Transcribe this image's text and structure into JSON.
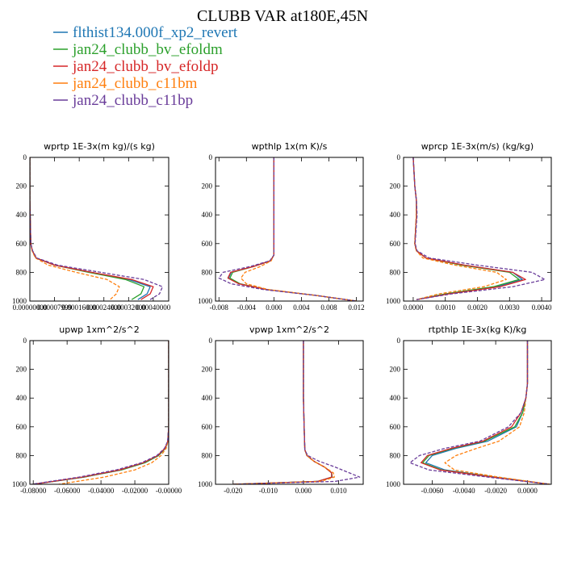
{
  "figure": {
    "title": "CLUBB VAR at180E,45N"
  },
  "legend": [
    {
      "name": "flthist134.000f_xp2_revert",
      "color": "#1f77b4"
    },
    {
      "name": "jan24_clubb_bv_efoldm",
      "color": "#2ca02c"
    },
    {
      "name": "jan24_clubb_bv_efoldp",
      "color": "#d62728"
    },
    {
      "name": "jan24_clubb_c11bm",
      "color": "#ff7f0e"
    },
    {
      "name": "jan24_clubb_c11bp",
      "color": "#6a3d9a"
    }
  ],
  "chart_data": [
    {
      "type": "line",
      "title": "wprtp  1E-3x(m kg)/(s kg)",
      "xlim": [
        0.0,
        0.00045
      ],
      "ylim": [
        1000,
        0
      ],
      "yticks": [
        "0",
        "200",
        "400",
        "600",
        "800",
        "1000"
      ],
      "xticks": [
        "0.00000000",
        "0.00007999",
        "0.00016000",
        "0.00024000",
        "0.00032000",
        "0.00040000"
      ],
      "series": [
        {
          "y": [
            0,
            100,
            300,
            600,
            650,
            700,
            750,
            800,
            850,
            900,
            950,
            990
          ],
          "x": [
            0,
            0,
            0,
            3e-06,
            8e-06,
            2e-05,
            8e-05,
            0.0002,
            0.00032,
            0.00039,
            0.00038,
            0.00035
          ]
        },
        {
          "y": [
            0,
            100,
            300,
            600,
            650,
            700,
            750,
            800,
            850,
            900,
            950,
            990
          ],
          "x": [
            0,
            0,
            0,
            3e-06,
            8e-06,
            2e-05,
            8e-05,
            0.00019,
            0.00031,
            0.00037,
            0.00036,
            0.00033
          ]
        },
        {
          "y": [
            0,
            100,
            300,
            600,
            650,
            700,
            750,
            800,
            850,
            900,
            950,
            990
          ],
          "x": [
            0,
            0,
            0,
            3e-06,
            8e-06,
            2e-05,
            8e-05,
            0.0002,
            0.00033,
            0.0004,
            0.00039,
            0.00036
          ]
        },
        {
          "y": [
            0,
            100,
            300,
            600,
            650,
            700,
            750,
            800,
            850,
            900,
            950,
            990
          ],
          "x": [
            0,
            0,
            0,
            3e-06,
            7e-06,
            1.8e-05,
            6e-05,
            0.00015,
            0.00025,
            0.00029,
            0.00028,
            0.00026
          ]
        },
        {
          "y": [
            0,
            100,
            300,
            600,
            650,
            700,
            750,
            800,
            850,
            900,
            950,
            990
          ],
          "x": [
            0,
            0,
            0,
            3e-06,
            9e-06,
            2.2e-05,
            9e-05,
            0.00023,
            0.00037,
            0.00043,
            0.00042,
            0.00039
          ]
        }
      ]
    },
    {
      "type": "line",
      "title": "wpthlp  1x(m K)/s",
      "xlim": [
        -0.0085,
        0.013
      ],
      "ylim": [
        1000,
        0
      ],
      "yticks": [
        "0",
        "200",
        "400",
        "600",
        "800",
        "1000"
      ],
      "xticks": [
        "-0.008",
        "-0.004",
        "0.000",
        "0.004",
        "0.008",
        "0.012"
      ],
      "series": [
        {
          "y": [
            0,
            200,
            400,
            600,
            680,
            720,
            760,
            800,
            840,
            880,
            920,
            960,
            1000
          ],
          "x": [
            0,
            0,
            0,
            0,
            0,
            -0.0005,
            -0.003,
            -0.0062,
            -0.0066,
            -0.005,
            -0.001,
            0.006,
            0.012
          ]
        },
        {
          "y": [
            0,
            200,
            400,
            600,
            680,
            720,
            760,
            800,
            840,
            880,
            920,
            960,
            1000
          ],
          "x": [
            0,
            0,
            0,
            0,
            0,
            -0.0005,
            -0.003,
            -0.006,
            -0.0064,
            -0.0049,
            -0.001,
            0.006,
            0.012
          ]
        },
        {
          "y": [
            0,
            200,
            400,
            600,
            680,
            720,
            760,
            800,
            840,
            880,
            920,
            960,
            1000
          ],
          "x": [
            0,
            0,
            0,
            0,
            0,
            -0.0005,
            -0.003,
            -0.0063,
            -0.0067,
            -0.0051,
            -0.001,
            0.006,
            0.012
          ]
        },
        {
          "y": [
            0,
            200,
            400,
            600,
            680,
            720,
            760,
            800,
            840,
            880,
            920,
            960,
            1000
          ],
          "x": [
            0,
            0,
            0,
            0,
            0,
            -0.0004,
            -0.002,
            -0.0042,
            -0.0048,
            -0.004,
            -0.0008,
            0.006,
            0.012
          ]
        },
        {
          "y": [
            0,
            200,
            400,
            600,
            680,
            720,
            760,
            800,
            840,
            880,
            920,
            960,
            1000
          ],
          "x": [
            0,
            0,
            0,
            0,
            0,
            -0.0006,
            -0.0035,
            -0.0074,
            -0.008,
            -0.0062,
            -0.0015,
            0.006,
            0.012
          ]
        }
      ]
    },
    {
      "type": "line",
      "title": "wprcp  1E-3x(m/s) (kg/kg)",
      "xlim": [
        -0.0003,
        0.0043
      ],
      "ylim": [
        1000,
        0
      ],
      "yticks": [
        "0",
        "200",
        "400",
        "600",
        "800",
        "1000"
      ],
      "xticks": [
        "0.0000",
        "0.0010",
        "0.0020",
        "0.0030",
        "0.0040"
      ],
      "series": [
        {
          "y": [
            0,
            200,
            300,
            400,
            600,
            650,
            700,
            750,
            800,
            850,
            900,
            950,
            990
          ],
          "x": [
            0,
            5e-05,
            0.0001,
            0.0001,
            5e-05,
            0.0001,
            0.0004,
            0.0016,
            0.0031,
            0.0034,
            0.0026,
            0.001,
            0.0001
          ]
        },
        {
          "y": [
            0,
            200,
            300,
            400,
            600,
            650,
            700,
            750,
            800,
            850,
            900,
            950,
            990
          ],
          "x": [
            0,
            5e-05,
            0.0001,
            0.0001,
            5e-05,
            0.0001,
            0.0004,
            0.0015,
            0.003,
            0.0033,
            0.0025,
            0.001,
            0.0001
          ]
        },
        {
          "y": [
            0,
            200,
            300,
            400,
            600,
            650,
            700,
            750,
            800,
            850,
            900,
            950,
            990
          ],
          "x": [
            0,
            5e-05,
            0.0001,
            0.0001,
            5e-05,
            0.0001,
            0.0004,
            0.0016,
            0.0031,
            0.0035,
            0.0027,
            0.0011,
            0.0001
          ]
        },
        {
          "y": [
            0,
            200,
            300,
            400,
            600,
            650,
            700,
            750,
            800,
            850,
            900,
            950,
            990
          ],
          "x": [
            0,
            5e-05,
            0.0001,
            0.0001,
            5e-05,
            0.0001,
            0.0003,
            0.0013,
            0.0026,
            0.0029,
            0.0022,
            0.0008,
            0.0001
          ]
        },
        {
          "y": [
            0,
            200,
            300,
            400,
            600,
            650,
            700,
            750,
            800,
            850,
            900,
            950,
            990
          ],
          "x": [
            0,
            5e-05,
            0.0001,
            0.00012,
            6e-05,
            0.00012,
            0.0005,
            0.002,
            0.0037,
            0.0041,
            0.0031,
            0.0012,
            0.0001
          ]
        }
      ]
    },
    {
      "type": "line",
      "title": "upwp  1xm^2/s^2",
      "xlim": [
        -0.082,
        0.0
      ],
      "ylim": [
        1000,
        0
      ],
      "yticks": [
        "0",
        "200",
        "400",
        "600",
        "800",
        "1000"
      ],
      "xticks": [
        "-0.08000",
        "-0.06000",
        "-0.04000",
        "-0.02000",
        "-0.00000"
      ],
      "series": [
        {
          "y": [
            0,
            200,
            400,
            600,
            700,
            750,
            800,
            850,
            900,
            950,
            1000
          ],
          "x": [
            0,
            0,
            0,
            0,
            -0.0005,
            -0.002,
            -0.006,
            -0.014,
            -0.028,
            -0.05,
            -0.08
          ]
        },
        {
          "y": [
            0,
            200,
            400,
            600,
            700,
            750,
            800,
            850,
            900,
            950,
            1000
          ],
          "x": [
            0,
            0,
            0,
            0,
            -0.0005,
            -0.002,
            -0.006,
            -0.014,
            -0.028,
            -0.05,
            -0.08
          ]
        },
        {
          "y": [
            0,
            200,
            400,
            600,
            700,
            750,
            800,
            850,
            900,
            950,
            1000
          ],
          "x": [
            0,
            0,
            0,
            0,
            -0.0005,
            -0.0022,
            -0.0065,
            -0.015,
            -0.029,
            -0.051,
            -0.08
          ]
        },
        {
          "y": [
            0,
            200,
            400,
            600,
            700,
            750,
            800,
            850,
            900,
            950,
            1000
          ],
          "x": [
            0,
            0,
            0,
            0,
            -0.0004,
            -0.0015,
            -0.0045,
            -0.01,
            -0.02,
            -0.038,
            -0.065
          ]
        },
        {
          "y": [
            0,
            200,
            400,
            600,
            700,
            750,
            800,
            850,
            900,
            950,
            1000
          ],
          "x": [
            0,
            0,
            0,
            0,
            -0.0006,
            -0.0025,
            -0.007,
            -0.016,
            -0.031,
            -0.053,
            -0.081
          ]
        }
      ]
    },
    {
      "type": "line",
      "title": "vpwp  1xm^2/s^2",
      "xlim": [
        -0.025,
        0.017
      ],
      "ylim": [
        1000,
        0
      ],
      "yticks": [
        "0",
        "200",
        "400",
        "600",
        "800",
        "1000"
      ],
      "xticks": [
        "-0.020",
        "-0.010",
        "0.000",
        "0.010"
      ],
      "series": [
        {
          "y": [
            0,
            200,
            400,
            600,
            760,
            800,
            840,
            880,
            920,
            950,
            980,
            1000
          ],
          "x": [
            0,
            0,
            0,
            0.0002,
            0.0004,
            0.001,
            0.003,
            0.006,
            0.008,
            0.008,
            0.004,
            -0.02
          ]
        },
        {
          "y": [
            0,
            200,
            400,
            600,
            760,
            800,
            840,
            880,
            920,
            950,
            980,
            1000
          ],
          "x": [
            0,
            0,
            0,
            0.0002,
            0.0004,
            0.001,
            0.003,
            0.006,
            0.008,
            0.0082,
            0.004,
            -0.02
          ]
        },
        {
          "y": [
            0,
            200,
            400,
            600,
            760,
            800,
            840,
            880,
            920,
            950,
            980,
            1000
          ],
          "x": [
            0,
            0,
            0,
            0.0002,
            0.0004,
            0.001,
            0.003,
            0.006,
            0.008,
            0.0081,
            0.004,
            -0.02
          ]
        },
        {
          "y": [
            0,
            200,
            400,
            600,
            760,
            800,
            840,
            880,
            920,
            950,
            980,
            1000
          ],
          "x": [
            0,
            0,
            0,
            0.0002,
            0.0004,
            0.001,
            0.003,
            0.006,
            0.0085,
            0.0088,
            0.005,
            -0.02
          ]
        },
        {
          "y": [
            0,
            200,
            400,
            600,
            760,
            800,
            840,
            880,
            920,
            950,
            980,
            1000
          ],
          "x": [
            0,
            0,
            0,
            0.0002,
            0.0004,
            0.0012,
            0.0045,
            0.009,
            0.013,
            0.016,
            0.009,
            -0.02
          ]
        }
      ]
    },
    {
      "type": "line",
      "title": "rtpthlp  1E-3x(kg K)/kg",
      "xlim": [
        -0.0078,
        0.0015
      ],
      "ylim": [
        1000,
        0
      ],
      "yticks": [
        "0",
        "200",
        "400",
        "600",
        "800",
        "1000"
      ],
      "xticks": [
        "-0.0060",
        "-0.0040",
        "-0.0020",
        "0.0000"
      ],
      "series": [
        {
          "y": [
            0,
            200,
            300,
            400,
            500,
            600,
            700,
            750,
            800,
            850,
            900,
            950,
            1000
          ],
          "x": [
            0,
            0,
            0,
            -0.0001,
            -0.0003,
            -0.0007,
            -0.0025,
            -0.0045,
            -0.006,
            -0.0064,
            -0.0052,
            -0.002,
            0.0014
          ]
        },
        {
          "y": [
            0,
            200,
            300,
            400,
            500,
            600,
            700,
            750,
            800,
            850,
            900,
            950,
            1000
          ],
          "x": [
            0,
            0,
            0,
            -0.0001,
            -0.0003,
            -0.0008,
            -0.0027,
            -0.0047,
            -0.0062,
            -0.0066,
            -0.0054,
            -0.0021,
            0.0014
          ]
        },
        {
          "y": [
            0,
            200,
            300,
            400,
            500,
            600,
            700,
            750,
            800,
            850,
            900,
            950,
            1000
          ],
          "x": [
            0,
            0,
            0,
            -0.0001,
            -0.0004,
            -0.001,
            -0.0028,
            -0.0048,
            -0.0063,
            -0.0067,
            -0.0055,
            -0.0022,
            0.0014
          ]
        },
        {
          "y": [
            0,
            200,
            300,
            400,
            500,
            600,
            700,
            750,
            800,
            850,
            900,
            950,
            1000
          ],
          "x": [
            0,
            0,
            0,
            -0.0001,
            -0.0002,
            -0.0005,
            -0.0018,
            -0.0032,
            -0.0045,
            -0.0052,
            -0.0046,
            -0.0018,
            0.0014
          ]
        },
        {
          "y": [
            0,
            200,
            300,
            400,
            500,
            600,
            700,
            750,
            800,
            850,
            900,
            950,
            1000
          ],
          "x": [
            0,
            0,
            0,
            -0.0001,
            -0.0004,
            -0.0012,
            -0.003,
            -0.0052,
            -0.0068,
            -0.0074,
            -0.0062,
            -0.0025,
            0.0014
          ]
        }
      ]
    }
  ]
}
